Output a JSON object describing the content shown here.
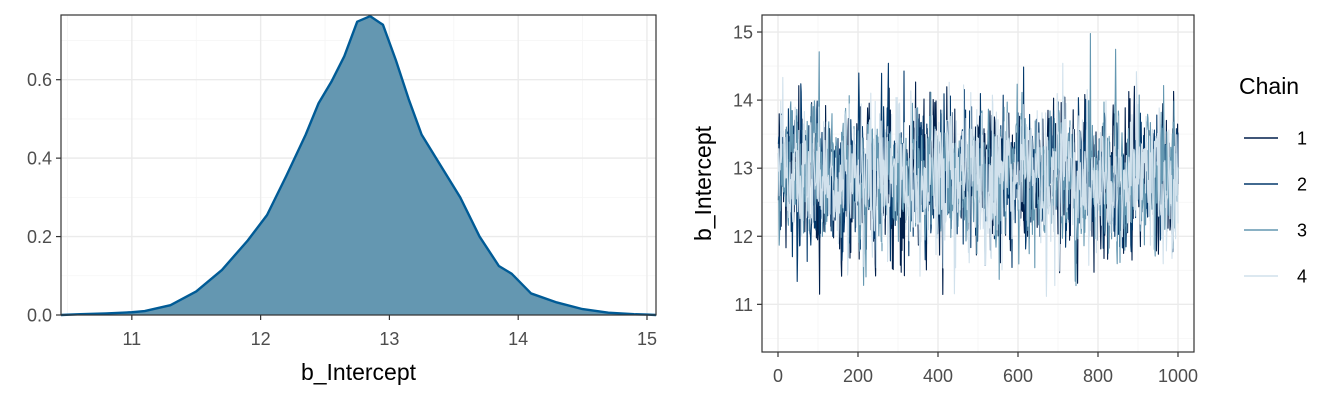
{
  "chart_data": [
    {
      "type": "area",
      "xlabel": "b_Intercept",
      "ylabel": "",
      "xlim": [
        10.45,
        15.07
      ],
      "ylim": [
        0,
        0.765
      ],
      "xticks": [
        11,
        12,
        13,
        14,
        15
      ],
      "yticks": [
        0.0,
        0.2,
        0.4,
        0.6
      ],
      "ytick_labels": [
        "0.0",
        "0.2",
        "0.4",
        "0.6"
      ],
      "grid": true,
      "fill_color": "#6497b1",
      "line_color": "#005b96",
      "series": [
        {
          "x": [
            10.45,
            10.6,
            10.8,
            11.0,
            11.1,
            11.3,
            11.5,
            11.7,
            11.9,
            12.05,
            12.2,
            12.35,
            12.45,
            12.55,
            12.65,
            12.75,
            12.85,
            12.95,
            13.05,
            13.15,
            13.25,
            13.4,
            13.55,
            13.7,
            13.85,
            13.95,
            14.1,
            14.3,
            14.5,
            14.7,
            14.9,
            15.0,
            15.07
          ],
          "y": [
            0.0,
            0.002,
            0.004,
            0.007,
            0.01,
            0.025,
            0.06,
            0.115,
            0.19,
            0.255,
            0.355,
            0.46,
            0.54,
            0.595,
            0.66,
            0.748,
            0.762,
            0.74,
            0.65,
            0.55,
            0.46,
            0.38,
            0.3,
            0.2,
            0.125,
            0.105,
            0.055,
            0.032,
            0.015,
            0.006,
            0.002,
            0.001,
            0.0
          ]
        }
      ]
    },
    {
      "type": "line",
      "xlabel": "",
      "ylabel": "b_Intercept",
      "xlim": [
        -40,
        1040
      ],
      "ylim": [
        10.3,
        15.25
      ],
      "xticks": [
        0,
        200,
        400,
        600,
        800,
        1000
      ],
      "yticks": [
        11,
        12,
        13,
        14,
        15
      ],
      "grid": true,
      "legend_title": "Chain",
      "legend_position": "right",
      "trace_mean": 12.85,
      "trace_sd": 0.52,
      "series": [
        {
          "name": "1",
          "color": "#011f4b"
        },
        {
          "name": "2",
          "color": "#03396c"
        },
        {
          "name": "3",
          "color": "#6497b1"
        },
        {
          "name": "4",
          "color": "#d1e1ec"
        }
      ]
    }
  ]
}
